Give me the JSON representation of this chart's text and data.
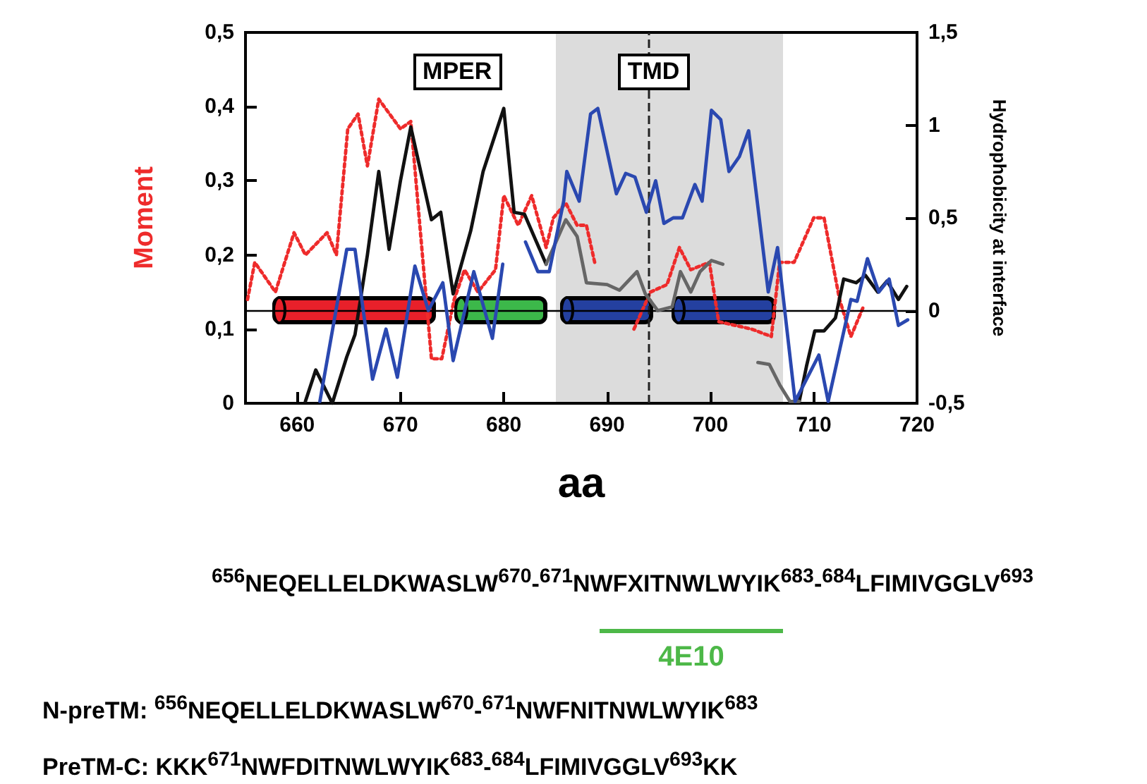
{
  "chart_data": {
    "type": "line",
    "ylabel": "Moment",
    "y2label": "Hydrophobicity at interface",
    "xlabel": "aa",
    "xlim": [
      655,
      720
    ],
    "xticks": [
      660,
      670,
      680,
      690,
      700,
      710,
      720
    ],
    "ylim": [
      0,
      0.5
    ],
    "yticks": [
      {
        "value": 0,
        "label": "0"
      },
      {
        "value": 0.1,
        "label": "0,1"
      },
      {
        "value": 0.2,
        "label": "0,2"
      },
      {
        "value": 0.3,
        "label": "0,3"
      },
      {
        "value": 0.4,
        "label": "0,4"
      },
      {
        "value": 0.5,
        "label": "0,5"
      }
    ],
    "y2lim": [
      -0.5,
      1.5
    ],
    "y2ticks": [
      {
        "value": -0.5,
        "label": "-0,5"
      },
      {
        "value": 0,
        "label": "0"
      },
      {
        "value": 0.5,
        "label": "0,5"
      },
      {
        "value": 1,
        "label": "1"
      },
      {
        "value": 1.5,
        "label": "1,5"
      }
    ],
    "line_style": "solid",
    "marker": "none",
    "grid": false,
    "series": [
      {
        "color": "#ee2b2b",
        "line_style": "dotted",
        "x": [
          655.2,
          655.9,
          657.9,
          659.7,
          660.8,
          662.9,
          663.8,
          664.9,
          665.9,
          666.8,
          667.9,
          670,
          671,
          673,
          674,
          675.2,
          676.2,
          677.5,
          679.2,
          680,
          681.4,
          682.7,
          684.1,
          684.8,
          686,
          687.1,
          688,
          688.8,
          690.5,
          692.6,
          694.2,
          695.8,
          697,
          698.1,
          699.9,
          700.8,
          704,
          705.9,
          706.7,
          708.1,
          710,
          711,
          712.5,
          713.6,
          714.8
        ],
        "values": [
          0.14,
          0.19,
          0.15,
          0.23,
          0.2,
          0.23,
          0.2,
          0.37,
          0.39,
          0.32,
          0.41,
          0.37,
          0.38,
          0.06,
          0.06,
          0.14,
          0.18,
          0.15,
          0.18,
          0.28,
          0.24,
          0.28,
          0.21,
          0.25,
          0.27,
          0.24,
          0.24,
          0.19,
          null,
          0.1,
          0.15,
          0.16,
          0.21,
          0.18,
          0.19,
          0.11,
          0.1,
          0.09,
          0.19,
          0.19,
          0.25,
          0.25,
          0.14,
          0.09,
          0.13
        ]
      },
      {
        "color": "#111111",
        "axis": "y2",
        "x": [
          660.8,
          661.8,
          663.4,
          664.8,
          665.6,
          666.8,
          667.9,
          668.9,
          670,
          671,
          673,
          673.9,
          675.1,
          676.8,
          678,
          680,
          681,
          682,
          684.1,
          696,
          708.6,
          709.3,
          710.1,
          711,
          712.1,
          712.9,
          714.1,
          715,
          716.2,
          717.1,
          718.2,
          719
        ],
        "values": [
          -0.49,
          -0.32,
          -0.5,
          -0.25,
          -0.13,
          0.3,
          0.75,
          0.33,
          0.7,
          0.99,
          0.49,
          0.53,
          0.09,
          0.43,
          0.75,
          1.09,
          0.53,
          0.52,
          0.25,
          null,
          -0.49,
          -0.3,
          -0.11,
          -0.11,
          -0.04,
          0.17,
          0.15,
          0.19,
          0.1,
          0.16,
          0.06,
          0.13
        ]
      },
      {
        "color": "#666666",
        "axis": "y2",
        "x": [
          684.1,
          686,
          687.1,
          688,
          690,
          691.2,
          692.9,
          693.7,
          694.9,
          696.3,
          697.1,
          698.1,
          699,
          700.1,
          701.2,
          702.1,
          704,
          704.6,
          705.7,
          706.7,
          707.7,
          708.6
        ],
        "values": [
          0.25,
          0.49,
          0.4,
          0.15,
          0.14,
          0.11,
          0.21,
          0.09,
          0,
          0.02,
          0.21,
          0.1,
          0.21,
          0.27,
          0.25,
          null,
          null,
          -0.28,
          -0.29,
          -0.4,
          -0.49,
          -0.49
        ]
      },
      {
        "color": "#2a48b0",
        "axis": "y2",
        "x": [
          662.2,
          664.8,
          665.6,
          667.3,
          668.6,
          669.7,
          671.4,
          672.7,
          674.1,
          675.1,
          677.1,
          678.9,
          679.9,
          680.6,
          682.1,
          683.3,
          684.4,
          685.8,
          686.1,
          687.3,
          688.4,
          689.1,
          690.9,
          691.8,
          692.7,
          693.8,
          694.7,
          695.5,
          696.4,
          697.3,
          698.5,
          699.2,
          700.1,
          701,
          701.8,
          702.8,
          703.7,
          705.6,
          706.5,
          708.2,
          710.5,
          711.4,
          713.6,
          714.2,
          715.2,
          716.3,
          717.3,
          718.2,
          719.1
        ],
        "values": [
          -0.49,
          0.33,
          0.33,
          -0.37,
          -0.1,
          -0.36,
          0.24,
          0,
          0.15,
          -0.27,
          0.21,
          -0.15,
          0.25,
          null,
          0.37,
          0.21,
          0.21,
          0.59,
          0.75,
          0.59,
          1.06,
          1.09,
          0.63,
          0.74,
          0.72,
          0.53,
          0.7,
          0.47,
          0.5,
          0.5,
          0.68,
          0.59,
          1.08,
          1.03,
          0.75,
          0.83,
          0.97,
          0.1,
          0.34,
          -0.49,
          -0.24,
          -0.49,
          0.06,
          0.05,
          0.28,
          0.1,
          0.17,
          -0.08,
          -0.05
        ]
      }
    ],
    "bands": [
      {
        "axis": "x",
        "from": 685,
        "to": 707,
        "color": "#dcdcdc"
      }
    ],
    "ref_lines": [
      {
        "axis": "x",
        "value": 694,
        "line_style": "dashed",
        "color": "#222222"
      },
      {
        "axis": "y2",
        "value": 0,
        "line_style": "solid",
        "color": "#000000"
      }
    ],
    "annotations": [
      "MPER",
      "TMD",
      "$^{656}$NEQELLELDKWASLW$^{670}$-$^{671}$NWFXITNWLWYIK$^{683}$-$^{684}$LFIMIVGGLV$^{693}$",
      "4E10",
      "N-preTM: $^{656}$NEQELLELDKWASLW$^{670}$-$^{671}$NWFNITNWLWYIK$^{683}$",
      "PreTM-C: KKK$^{671}$NWFDITNWLWYIK$^{683}$-$^{684}$LFIMIVGGLV$^{693}$KK"
    ]
  }
}
